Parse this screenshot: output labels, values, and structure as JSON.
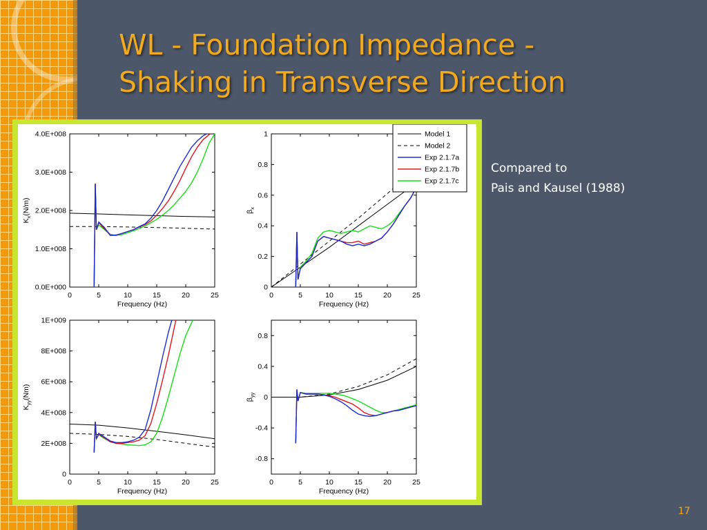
{
  "slide": {
    "title_line1": "WL - Foundation Impedance -",
    "title_line2": "Shaking in Transverse Direction",
    "caption_line1": "Compared to",
    "caption_line2": "Pais and Kausel (1988)",
    "page_number": "17"
  },
  "colors": {
    "background": "#4c5769",
    "title": "#f2a91e",
    "frame": "#c8e62f",
    "Model 1": "#000000",
    "Model 2": "#000000",
    "Exp 2.1.7a": "#1a2bd6",
    "Exp 2.1.7b": "#e0141e",
    "Exp 2.1.7c": "#14e014"
  },
  "legend": {
    "placement": "top-right",
    "entries": [
      {
        "name": "Model 1",
        "style": "solid"
      },
      {
        "name": "Model 2",
        "style": "dashed"
      },
      {
        "name": "Exp 2.1.7a",
        "style": "solid"
      },
      {
        "name": "Exp 2.1.7b",
        "style": "solid"
      },
      {
        "name": "Exp 2.1.7c",
        "style": "solid"
      }
    ]
  },
  "chart_data": [
    {
      "id": "kx",
      "type": "line",
      "xlabel": "Frequency (Hz)",
      "ylabel_main": "K",
      "ylabel_sub": "x",
      "ylabel_unit": "(N/m)",
      "xlim": [
        0,
        25
      ],
      "ylim": [
        0,
        400000000
      ],
      "xticks": [
        0,
        5,
        10,
        15,
        20,
        25
      ],
      "xtick_labels": [
        "0",
        "5",
        "10",
        "15",
        "20",
        "25"
      ],
      "yticks": [
        0,
        100000000,
        200000000,
        300000000,
        400000000
      ],
      "ytick_labels": [
        "0.0E+000",
        "1.0E+008",
        "2.0E+008",
        "3.0E+008",
        "4.0E+008"
      ],
      "grid": false,
      "series": [
        {
          "name": "Model 1",
          "x": [
            0,
            5,
            10,
            15,
            20,
            25
          ],
          "y": [
            193000000,
            191000000,
            188500000,
            186500000,
            184500000,
            183000000
          ]
        },
        {
          "name": "Model 2",
          "x": [
            0,
            5,
            10,
            15,
            20,
            25
          ],
          "y": [
            158000000,
            158000000,
            157000000,
            155500000,
            153500000,
            151500000
          ]
        },
        {
          "name": "Exp 2.1.7a",
          "x": [
            4.2,
            4.4,
            4.6,
            5,
            6,
            7,
            8,
            9,
            10,
            11,
            12,
            13,
            14,
            15,
            16,
            17,
            18,
            19,
            20,
            21,
            22,
            23,
            23.6
          ],
          "y": [
            0,
            270000000,
            150000000,
            170000000,
            155000000,
            135000000,
            136000000,
            140000000,
            145000000,
            150000000,
            158000000,
            165000000,
            180000000,
            200000000,
            225000000,
            255000000,
            285000000,
            315000000,
            340000000,
            365000000,
            382000000,
            395000000,
            400000000
          ]
        },
        {
          "name": "Exp 2.1.7b",
          "x": [
            4.2,
            4.4,
            4.6,
            5,
            6,
            7,
            8,
            9,
            10,
            11,
            12,
            13,
            14,
            15,
            16,
            17,
            18,
            19,
            20,
            21,
            22,
            23,
            24.2
          ],
          "y": [
            0,
            270000000,
            150000000,
            168000000,
            152000000,
            135000000,
            135000000,
            140000000,
            145000000,
            150000000,
            157000000,
            163000000,
            173000000,
            188000000,
            205000000,
            225000000,
            250000000,
            278000000,
            310000000,
            340000000,
            365000000,
            385000000,
            400000000
          ]
        },
        {
          "name": "Exp 2.1.7c",
          "x": [
            4.2,
            4.4,
            4.6,
            5,
            6,
            7,
            8,
            9,
            10,
            11,
            12,
            13,
            14,
            15,
            16,
            17,
            18,
            19,
            20,
            21,
            22,
            23,
            24,
            25
          ],
          "y": [
            0,
            270000000,
            150000000,
            162000000,
            150000000,
            138000000,
            135000000,
            137000000,
            142000000,
            147000000,
            153000000,
            160000000,
            168000000,
            177000000,
            188000000,
            200000000,
            215000000,
            232000000,
            250000000,
            272000000,
            300000000,
            335000000,
            375000000,
            400000000
          ]
        }
      ]
    },
    {
      "id": "bx",
      "type": "line",
      "xlabel": "Frequency (Hz)",
      "ylabel_main": "β",
      "ylabel_sub": "x",
      "ylabel_unit": "",
      "xlim": [
        0,
        25
      ],
      "ylim": [
        0,
        1
      ],
      "xticks": [
        0,
        5,
        10,
        15,
        20,
        25
      ],
      "xtick_labels": [
        "0",
        "5",
        "10",
        "15",
        "20",
        "25"
      ],
      "yticks": [
        0,
        0.2,
        0.4,
        0.6,
        0.8,
        1
      ],
      "ytick_labels": [
        "0",
        "0.2",
        "0.4",
        "0.6",
        "0.8",
        "1"
      ],
      "grid": false,
      "series": [
        {
          "name": "Model 1",
          "x": [
            0,
            5,
            10,
            15,
            20,
            25
          ],
          "y": [
            0,
            0.13,
            0.26,
            0.4,
            0.54,
            0.68
          ]
        },
        {
          "name": "Model 2",
          "x": [
            0,
            5,
            10,
            15,
            20,
            25
          ],
          "y": [
            0,
            0.15,
            0.3,
            0.45,
            0.61,
            0.78
          ]
        },
        {
          "name": "Exp 2.1.7a",
          "x": [
            4.2,
            4.4,
            4.6,
            5,
            6,
            7,
            8,
            9,
            10,
            11,
            12,
            13,
            14,
            15,
            16,
            17,
            18,
            19,
            20,
            21,
            22,
            23,
            24,
            25
          ],
          "y": [
            0,
            0.36,
            0.05,
            0.12,
            0.16,
            0.2,
            0.3,
            0.33,
            0.32,
            0.31,
            0.3,
            0.28,
            0.27,
            0.28,
            0.27,
            0.28,
            0.3,
            0.32,
            0.36,
            0.41,
            0.47,
            0.53,
            0.58,
            0.65
          ]
        },
        {
          "name": "Exp 2.1.7b",
          "x": [
            4.2,
            4.4,
            4.6,
            5,
            6,
            7,
            8,
            9,
            10,
            11,
            12,
            13,
            14,
            15,
            16,
            17,
            18,
            19,
            20,
            21,
            22,
            23,
            24,
            25
          ],
          "y": [
            0,
            0.36,
            0.05,
            0.12,
            0.16,
            0.2,
            0.3,
            0.33,
            0.32,
            0.31,
            0.3,
            0.29,
            0.29,
            0.3,
            0.28,
            0.29,
            0.3,
            0.32,
            0.36,
            0.41,
            0.47,
            0.53,
            0.58,
            0.65
          ]
        },
        {
          "name": "Exp 2.1.7c",
          "x": [
            4.2,
            4.4,
            4.6,
            5,
            6,
            7,
            8,
            9,
            10,
            11,
            12,
            13,
            14,
            15,
            16,
            17,
            18,
            19,
            20,
            21,
            22,
            23,
            24,
            25
          ],
          "y": [
            0,
            0.36,
            0.05,
            0.13,
            0.17,
            0.22,
            0.32,
            0.36,
            0.37,
            0.36,
            0.35,
            0.36,
            0.37,
            0.36,
            0.38,
            0.4,
            0.39,
            0.38,
            0.4,
            0.43,
            0.48,
            0.53,
            0.58,
            0.65
          ]
        }
      ]
    },
    {
      "id": "kyy",
      "type": "line",
      "xlabel": "Frequency (Hz)",
      "ylabel_main": "K",
      "ylabel_sub": "yy",
      "ylabel_unit": "(Nm)",
      "xlim": [
        0,
        25
      ],
      "ylim": [
        0,
        1000000000
      ],
      "xticks": [
        0,
        5,
        10,
        15,
        20,
        25
      ],
      "xtick_labels": [
        "0",
        "5",
        "10",
        "15",
        "20",
        "25"
      ],
      "yticks": [
        0,
        200000000,
        400000000,
        600000000,
        800000000,
        1000000000
      ],
      "ytick_labels": [
        "0",
        "2E+008",
        "4E+008",
        "6E+008",
        "8E+008",
        "1E+009"
      ],
      "grid": false,
      "series": [
        {
          "name": "Model 1",
          "x": [
            0,
            5,
            10,
            15,
            20,
            25
          ],
          "y": [
            325000000,
            318000000,
            300000000,
            278000000,
            255000000,
            230000000
          ]
        },
        {
          "name": "Model 2",
          "x": [
            0,
            5,
            10,
            15,
            20,
            25
          ],
          "y": [
            265000000,
            258000000,
            245000000,
            225000000,
            200000000,
            175000000
          ]
        },
        {
          "name": "Exp 2.1.7a",
          "x": [
            4.2,
            4.4,
            4.6,
            5,
            6,
            7,
            8,
            9,
            10,
            11,
            12,
            13,
            14,
            15,
            16,
            17,
            17.6
          ],
          "y": [
            140000000,
            340000000,
            230000000,
            265000000,
            240000000,
            215000000,
            205000000,
            205000000,
            210000000,
            220000000,
            240000000,
            290000000,
            420000000,
            590000000,
            760000000,
            920000000,
            1000000000
          ]
        },
        {
          "name": "Exp 2.1.7b",
          "x": [
            4.2,
            4.4,
            4.6,
            5,
            6,
            7,
            8,
            9,
            10,
            11,
            12,
            13,
            14,
            15,
            16,
            17,
            18.3
          ],
          "y": [
            140000000,
            340000000,
            230000000,
            260000000,
            235000000,
            210000000,
            200000000,
            200000000,
            205000000,
            210000000,
            220000000,
            250000000,
            330000000,
            460000000,
            610000000,
            770000000,
            1000000000
          ]
        },
        {
          "name": "Exp 2.1.7c",
          "x": [
            4.2,
            4.4,
            4.6,
            5,
            6,
            7,
            8,
            9,
            10,
            11,
            12,
            13,
            14,
            15,
            16,
            17,
            18,
            19,
            20,
            21.2
          ],
          "y": [
            140000000,
            340000000,
            230000000,
            255000000,
            230000000,
            210000000,
            200000000,
            195000000,
            190000000,
            188000000,
            185000000,
            190000000,
            210000000,
            265000000,
            370000000,
            500000000,
            640000000,
            780000000,
            900000000,
            1000000000
          ]
        }
      ]
    },
    {
      "id": "byy",
      "type": "line",
      "xlabel": "Frequency (Hz)",
      "ylabel_main": "β",
      "ylabel_sub": "yy",
      "ylabel_unit": "",
      "xlim": [
        0,
        25
      ],
      "ylim": [
        -1,
        1
      ],
      "xticks": [
        0,
        5,
        10,
        15,
        20,
        25
      ],
      "xtick_labels": [
        "0",
        "5",
        "10",
        "15",
        "20",
        "25"
      ],
      "yticks": [
        -0.8,
        -0.4,
        0,
        0.4,
        0.8
      ],
      "ytick_labels": [
        "-0.8",
        "-0.4",
        "0",
        "0.4",
        "0.8"
      ],
      "grid": false,
      "series": [
        {
          "name": "Model 1",
          "x": [
            0,
            5,
            10,
            15,
            20,
            25
          ],
          "y": [
            0,
            0,
            0.03,
            0.1,
            0.22,
            0.4
          ]
        },
        {
          "name": "Model 2",
          "x": [
            0,
            5,
            10,
            15,
            20,
            25
          ],
          "y": [
            0,
            0,
            0.04,
            0.14,
            0.29,
            0.5
          ]
        },
        {
          "name": "Exp 2.1.7a",
          "x": [
            4.2,
            4.4,
            4.6,
            5,
            6,
            7,
            8,
            9,
            10,
            11,
            12,
            13,
            14,
            15,
            16,
            17,
            18,
            19,
            20,
            21,
            22,
            23,
            24,
            25
          ],
          "y": [
            -0.6,
            0.1,
            -0.05,
            0.06,
            0.04,
            0.04,
            0.04,
            0.03,
            0.01,
            -0.02,
            -0.06,
            -0.11,
            -0.17,
            -0.22,
            -0.24,
            -0.25,
            -0.24,
            -0.22,
            -0.2,
            -0.18,
            -0.17,
            -0.15,
            -0.13,
            -0.11
          ]
        },
        {
          "name": "Exp 2.1.7b",
          "x": [
            4.2,
            4.4,
            4.6,
            5,
            6,
            7,
            8,
            9,
            10,
            11,
            12,
            13,
            14,
            15,
            16,
            17,
            18,
            19,
            20,
            21,
            22,
            23,
            24,
            25
          ],
          "y": [
            -0.6,
            0.1,
            -0.05,
            0.06,
            0.04,
            0.04,
            0.04,
            0.03,
            0.02,
            0,
            -0.03,
            -0.06,
            -0.09,
            -0.14,
            -0.2,
            -0.23,
            -0.24,
            -0.22,
            -0.2,
            -0.18,
            -0.17,
            -0.15,
            -0.13,
            -0.11
          ]
        },
        {
          "name": "Exp 2.1.7c",
          "x": [
            4.2,
            4.4,
            4.6,
            5,
            6,
            7,
            8,
            9,
            10,
            11,
            12,
            13,
            14,
            15,
            16,
            17,
            18,
            19,
            20,
            21,
            22,
            23,
            24,
            25
          ],
          "y": [
            -0.6,
            0.1,
            -0.05,
            0.06,
            0.05,
            0.05,
            0.05,
            0.05,
            0.05,
            0.04,
            0.03,
            0.01,
            -0.02,
            -0.05,
            -0.09,
            -0.13,
            -0.17,
            -0.2,
            -0.2,
            -0.18,
            -0.16,
            -0.14,
            -0.12,
            -0.1
          ]
        }
      ]
    }
  ]
}
